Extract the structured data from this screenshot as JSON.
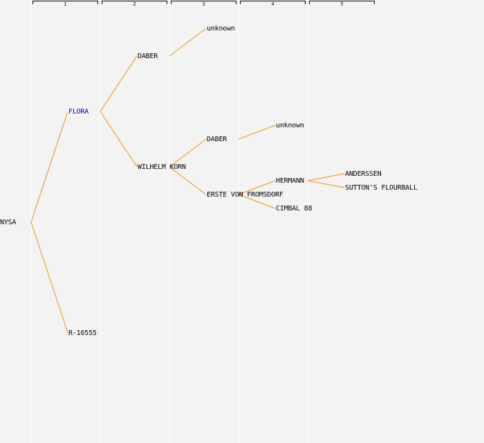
{
  "generations": [
    "1",
    "2",
    "3",
    "4",
    "5"
  ],
  "colors": {
    "edge": "#f0900a",
    "link_text": "#0000cc",
    "text": "#000000",
    "background": "#f3f3f3"
  },
  "nodes": {
    "root": "NYSA",
    "sire": "FLORA",
    "dam": "R-16555",
    "sire_sire": "DABER",
    "sire_dam": "WILHELM KORN",
    "sire_sire_sire": "unknown",
    "sire_dam_sire": "DABER",
    "sire_dam_dam": "ERSTE VON FROMSDORF",
    "sire_dam_sire_sire": "unknown",
    "sire_dam_dam_sire": "HERMANN",
    "sire_dam_dam_dam": "CIMBAL 88",
    "sire_dam_dam_sire_sire": "ANDERSSEN",
    "sire_dam_dam_sire_dam": "SUTTON'S FLOURBALL"
  }
}
